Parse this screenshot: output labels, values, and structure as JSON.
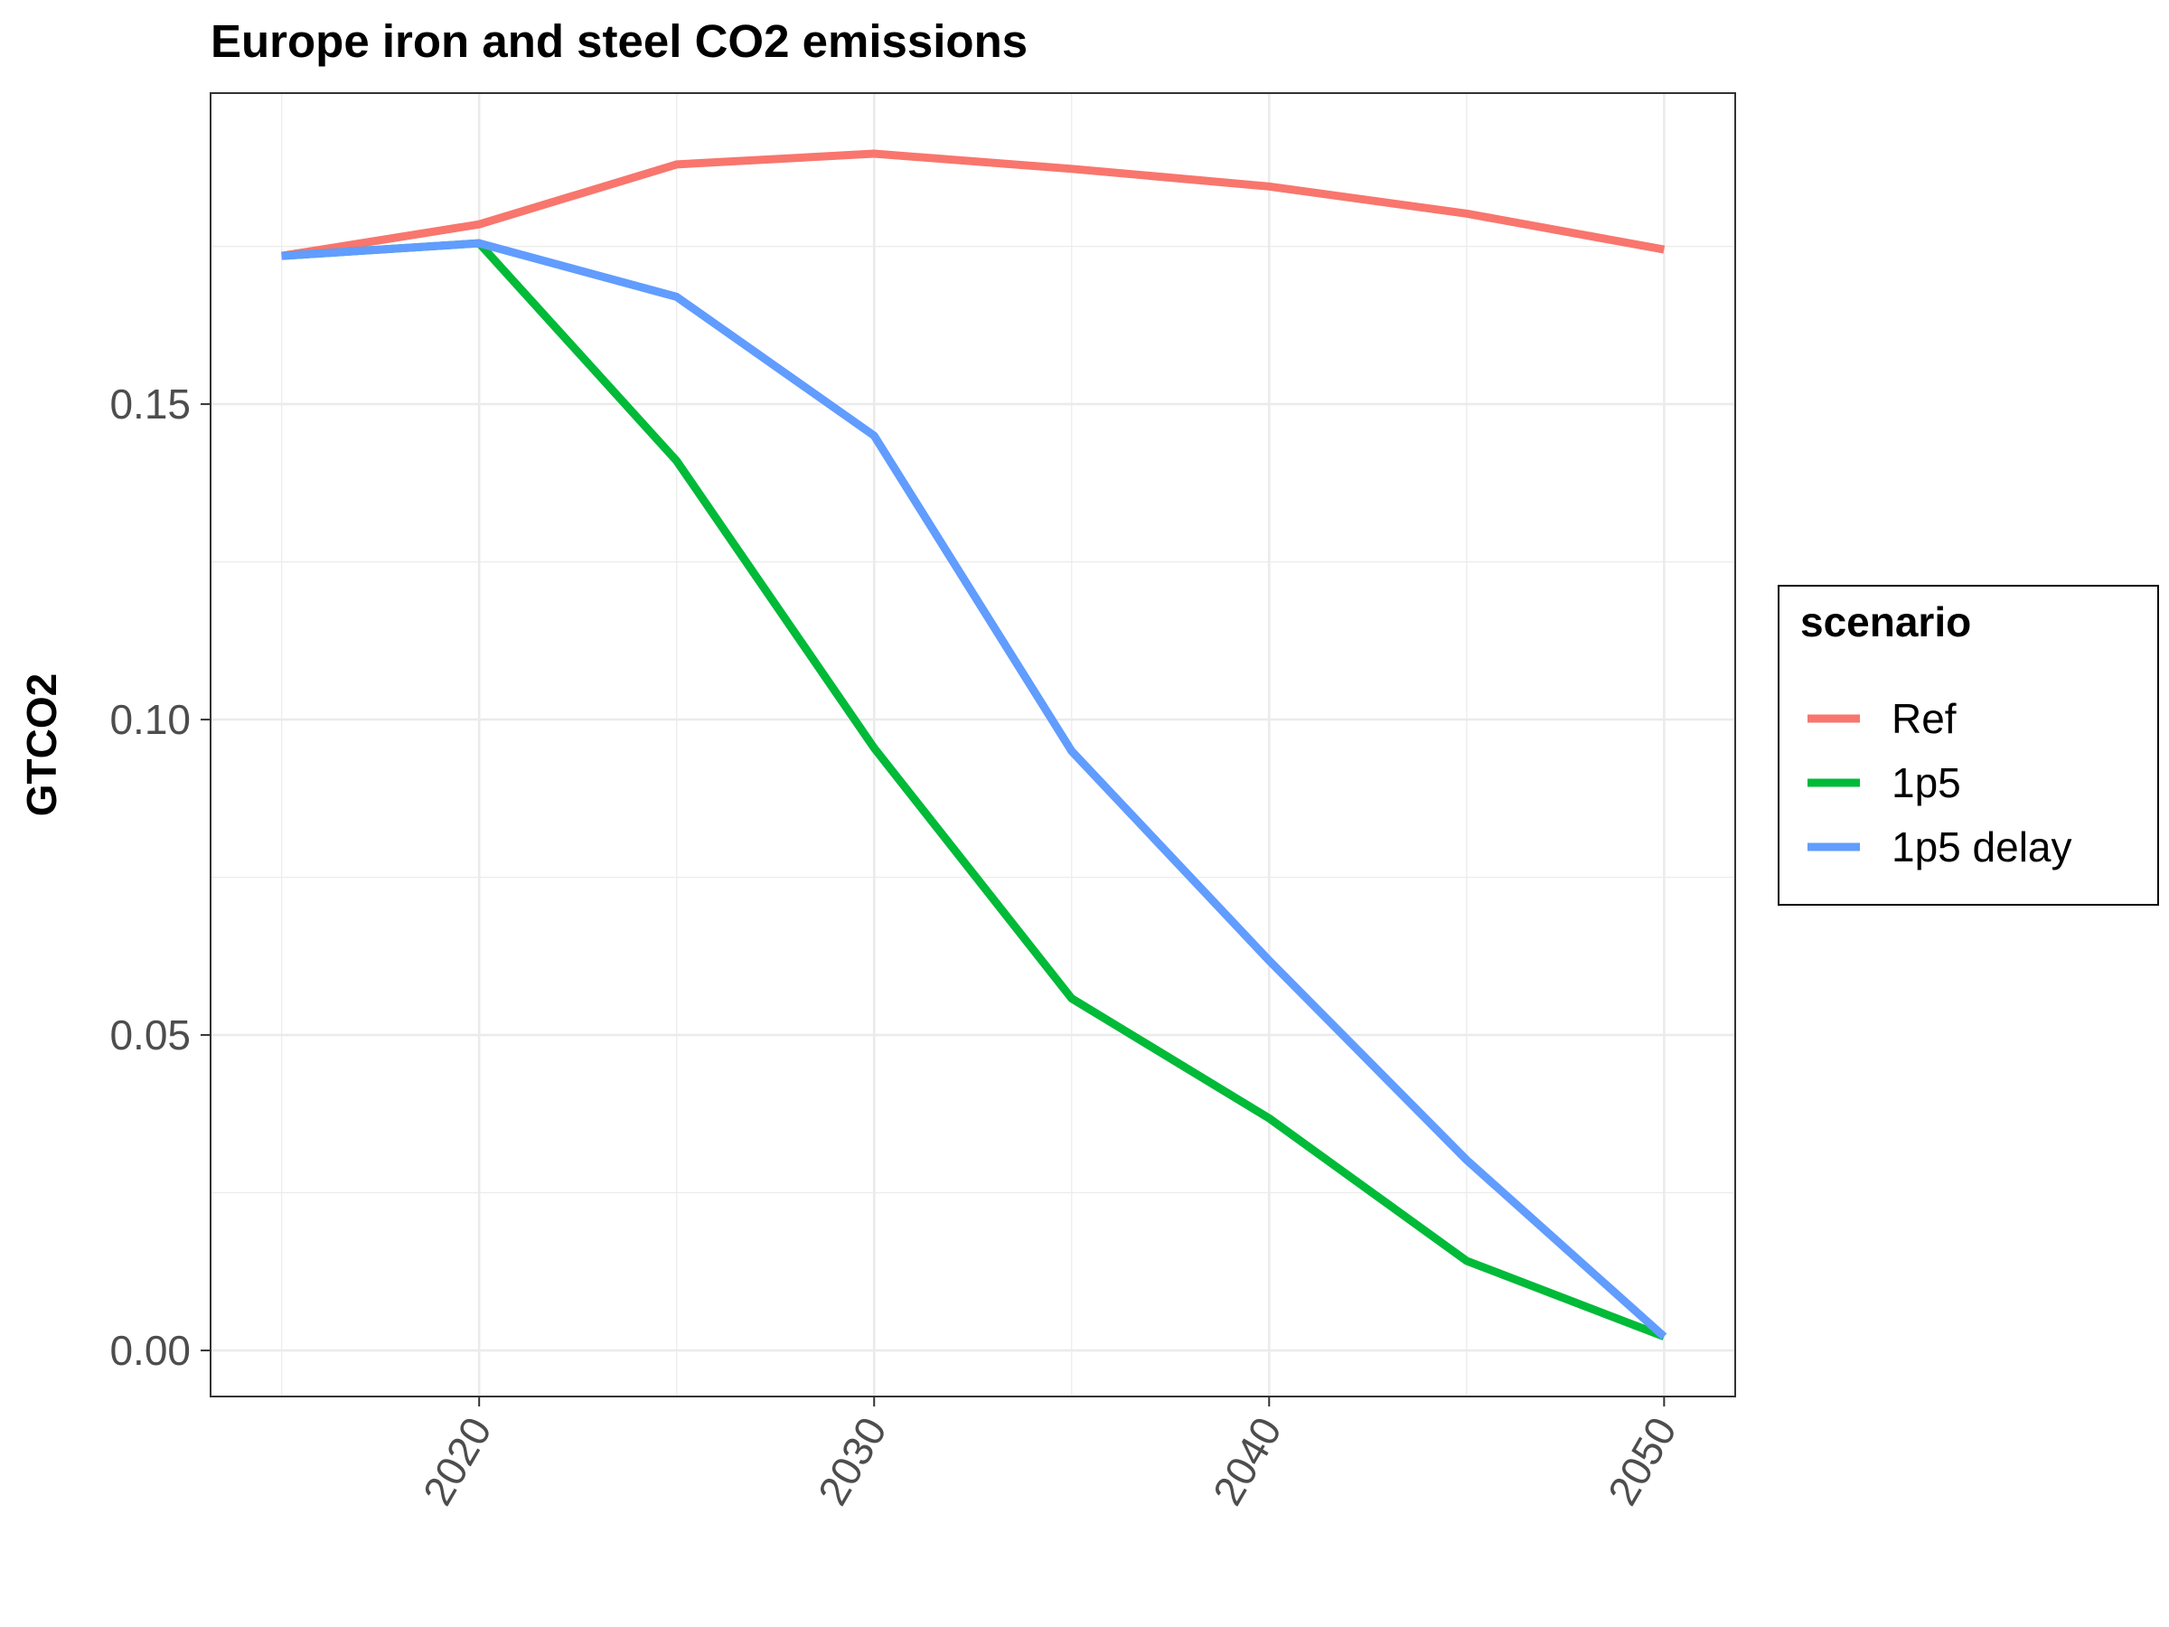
{
  "chart_data": {
    "type": "line",
    "title": "Europe iron and steel CO2 emissions",
    "xlabel": "",
    "ylabel": "GTCO2",
    "x": [
      2015,
      2020,
      2025,
      2030,
      2035,
      2040,
      2045,
      2050
    ],
    "xlim": [
      2013.2,
      2051.8
    ],
    "ylim": [
      -0.0073,
      0.1993
    ],
    "x_ticks": [
      2020,
      2030,
      2040,
      2050
    ],
    "x_tick_labels": [
      "2020",
      "2030",
      "2040",
      "2050"
    ],
    "y_ticks": [
      0.0,
      0.05,
      0.1,
      0.15
    ],
    "y_tick_labels": [
      "0.00",
      "0.05",
      "0.10",
      "0.15"
    ],
    "grid": true,
    "legend": {
      "title": "scenario",
      "placement": "right"
    },
    "series": [
      {
        "name": "Ref",
        "color": "#F8766D",
        "values": [
          0.1735,
          0.1785,
          0.188,
          0.1897,
          0.1873,
          0.1845,
          0.1802,
          0.1745
        ]
      },
      {
        "name": "1p5",
        "color": "#00BA38",
        "values": [
          0.1735,
          0.1755,
          0.141,
          0.0955,
          0.0558,
          0.0368,
          0.0142,
          0.0022
        ]
      },
      {
        "name": "1p5 delay",
        "color": "#619CFF",
        "values": [
          0.1735,
          0.1755,
          0.167,
          0.145,
          0.095,
          0.0618,
          0.0302,
          0.0022
        ]
      }
    ]
  }
}
